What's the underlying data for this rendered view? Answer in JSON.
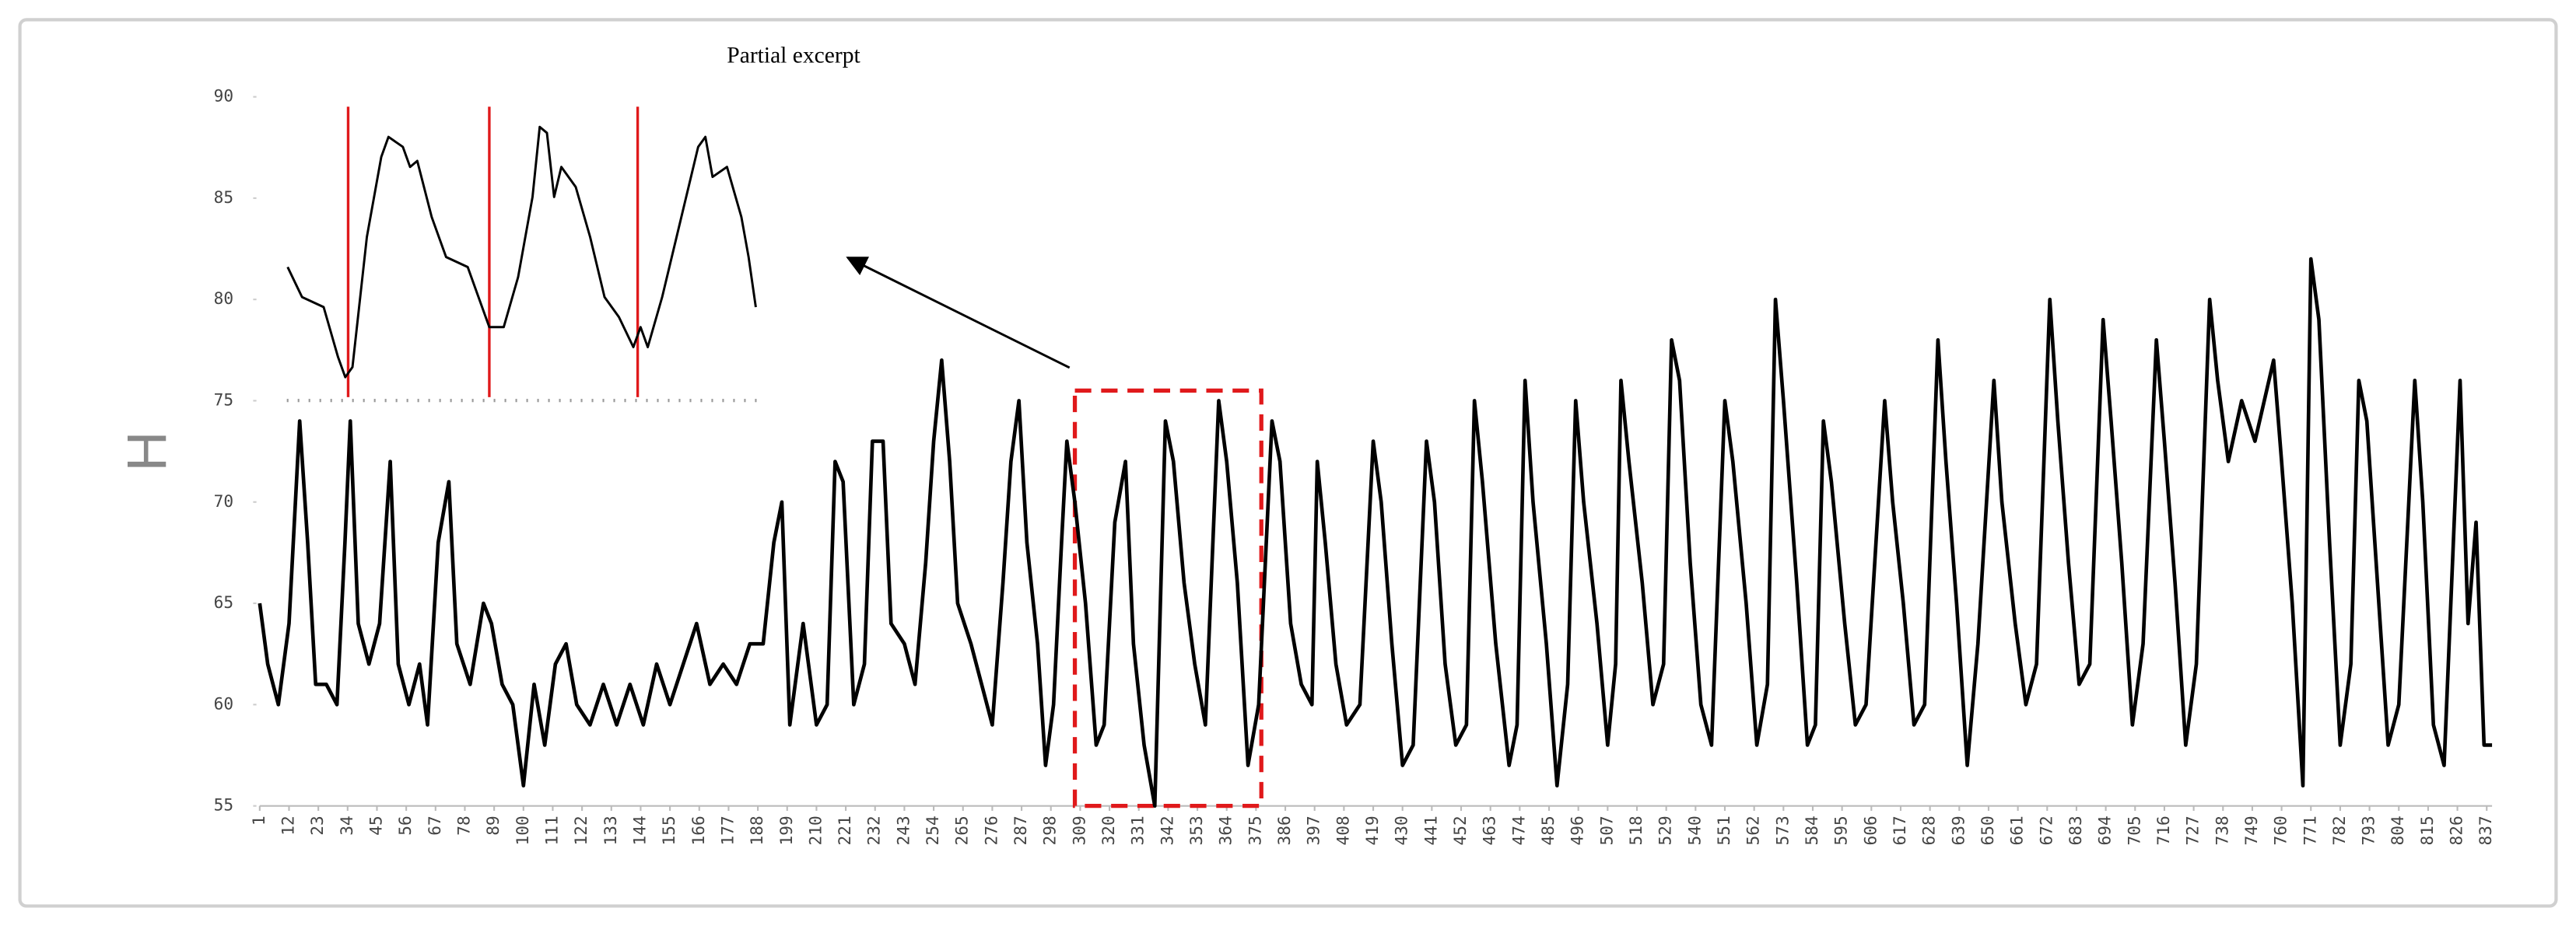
{
  "chart_data": [
    {
      "type": "line",
      "ylabel": "H",
      "color": "#000000",
      "xlim": [
        1,
        839
      ],
      "ylim": [
        55,
        90
      ],
      "yticks": [
        55,
        60,
        65,
        70,
        75,
        80,
        85,
        90
      ],
      "xticks": [
        1,
        12,
        23,
        34,
        45,
        56,
        67,
        78,
        89,
        100,
        111,
        122,
        133,
        144,
        155,
        166,
        177,
        188,
        199,
        210,
        221,
        232,
        243,
        254,
        265,
        276,
        287,
        298,
        309,
        320,
        331,
        342,
        353,
        364,
        375,
        386,
        397,
        408,
        419,
        430,
        441,
        452,
        463,
        474,
        485,
        496,
        507,
        518,
        529,
        540,
        551,
        562,
        573,
        584,
        595,
        606,
        617,
        628,
        639,
        650,
        661,
        672,
        683,
        694,
        705,
        716,
        727,
        738,
        749,
        760,
        771,
        782,
        793,
        804,
        815,
        826,
        837
      ],
      "highlight": {
        "color": "#e0191b",
        "xlim": [
          307,
          377
        ],
        "ylim": [
          55,
          75.5
        ]
      },
      "x": [
        1,
        4,
        8,
        12,
        16,
        19,
        22,
        26,
        30,
        33,
        35,
        38,
        42,
        46,
        50,
        53,
        57,
        61,
        64,
        68,
        72,
        75,
        80,
        85,
        88,
        92,
        96,
        100,
        104,
        108,
        112,
        116,
        120,
        125,
        130,
        135,
        140,
        145,
        150,
        155,
        160,
        165,
        170,
        175,
        180,
        185,
        190,
        194,
        197,
        200,
        205,
        210,
        214,
        217,
        220,
        224,
        228,
        231,
        235,
        238,
        243,
        247,
        251,
        254,
        257,
        260,
        263,
        268,
        272,
        276,
        280,
        283,
        286,
        289,
        293,
        296,
        299,
        302,
        304,
        307,
        311,
        315,
        318,
        322,
        326,
        329,
        333,
        337,
        341,
        344,
        348,
        352,
        356,
        361,
        364,
        368,
        372,
        376,
        381,
        384,
        388,
        392,
        396,
        398,
        401,
        405,
        409,
        414,
        419,
        422,
        426,
        430,
        434,
        439,
        442,
        446,
        450,
        454,
        457,
        460,
        465,
        470,
        473,
        476,
        479,
        484,
        488,
        492,
        495,
        498,
        503,
        507,
        510,
        512,
        515,
        520,
        524,
        528,
        531,
        534,
        538,
        542,
        546,
        551,
        554,
        559,
        563,
        567,
        570,
        573,
        578,
        582,
        585,
        588,
        591,
        596,
        600,
        604,
        611,
        614,
        618,
        622,
        626,
        631,
        634,
        638,
        642,
        646,
        652,
        655,
        660,
        664,
        668,
        673,
        676,
        680,
        684,
        688,
        693,
        696,
        700,
        704,
        708,
        713,
        716,
        720,
        724,
        728,
        733,
        736,
        740,
        745,
        750,
        757,
        760,
        764,
        768,
        771,
        774,
        778,
        782,
        786,
        789,
        792,
        796,
        800,
        804,
        810,
        813,
        817,
        821,
        827,
        830,
        833,
        836,
        839
      ],
      "values": [
        65,
        62,
        60,
        64,
        74,
        68,
        61,
        61,
        60,
        68,
        74,
        64,
        62,
        64,
        72,
        62,
        60,
        62,
        59,
        68,
        71,
        63,
        61,
        65,
        64,
        61,
        60,
        56,
        61,
        58,
        62,
        63,
        60,
        59,
        61,
        59,
        61,
        59,
        62,
        60,
        62,
        64,
        61,
        62,
        61,
        63,
        63,
        68,
        70,
        59,
        64,
        59,
        60,
        72,
        71,
        60,
        62,
        73,
        73,
        64,
        63,
        61,
        67,
        73,
        77,
        72,
        65,
        63,
        61,
        59,
        66,
        72,
        75,
        68,
        63,
        57,
        60,
        68,
        73,
        70,
        65,
        58,
        59,
        69,
        72,
        63,
        58,
        55,
        74,
        72,
        66,
        62,
        59,
        75,
        72,
        66,
        57,
        60,
        74,
        72,
        64,
        61,
        60,
        72,
        68,
        62,
        59,
        60,
        73,
        70,
        63,
        57,
        58,
        73,
        70,
        62,
        58,
        59,
        75,
        71,
        63,
        57,
        59,
        76,
        70,
        63,
        56,
        61,
        75,
        70,
        64,
        58,
        62,
        76,
        72,
        66,
        60,
        62,
        78,
        76,
        67,
        60,
        58,
        75,
        72,
        65,
        58,
        61,
        80,
        75,
        66,
        58,
        59,
        74,
        71,
        64,
        59,
        60,
        75,
        70,
        65,
        59,
        60,
        78,
        72,
        65,
        57,
        63,
        76,
        70,
        64,
        60,
        62,
        80,
        74,
        67,
        61,
        62,
        79,
        74,
        67,
        59,
        63,
        78,
        73,
        66,
        58,
        62,
        80,
        76,
        72,
        75,
        73,
        77,
        72,
        65,
        56,
        82,
        79,
        68,
        58,
        62,
        76,
        74,
        66,
        58,
        60,
        76,
        70,
        59,
        57,
        76,
        64,
        69,
        58,
        58
      ]
    },
    {
      "type": "line",
      "title": "Partial excerpt",
      "color": "#000000",
      "marker_color": "#e0191b",
      "xlim": [
        1,
        66
      ],
      "ylim": [
        75,
        90
      ],
      "vlines": [
        9.4,
        29,
        49.6
      ],
      "x": [
        1,
        3,
        6,
        8,
        9,
        10,
        12,
        14,
        15,
        17,
        18,
        19,
        21,
        23,
        26,
        28,
        29,
        31,
        33,
        35,
        36,
        37,
        38,
        39,
        41,
        43,
        45,
        47,
        49,
        50,
        51,
        53,
        55,
        57,
        58,
        59,
        60,
        62,
        64,
        65,
        66
      ],
      "values": [
        81.5,
        80,
        79.5,
        77,
        76,
        76.5,
        83,
        87,
        88,
        87.5,
        86.5,
        86.8,
        84,
        82,
        81.5,
        79.5,
        78.5,
        78.5,
        81,
        85,
        88.5,
        88.2,
        85,
        86.5,
        85.5,
        83,
        80,
        79,
        77.5,
        78.5,
        77.5,
        80,
        83,
        86,
        87.5,
        88,
        86,
        86.5,
        84,
        82,
        79.5
      ]
    }
  ]
}
